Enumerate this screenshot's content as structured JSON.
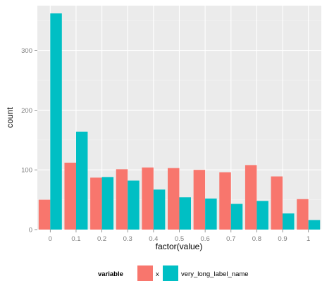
{
  "chart_data": {
    "type": "bar",
    "title": "",
    "xlabel": "factor(value)",
    "ylabel": "count",
    "ylim": [
      0,
      375
    ],
    "yticks": [
      0,
      100,
      200,
      300
    ],
    "categories": [
      "0",
      "0.1",
      "0.2",
      "0.3",
      "0.4",
      "0.5",
      "0.6",
      "0.7",
      "0.8",
      "0.9",
      "1"
    ],
    "series": [
      {
        "name": "x",
        "color": "#F8766D",
        "values": [
          50,
          112,
          87,
          101,
          104,
          103,
          100,
          96,
          108,
          89,
          51
        ]
      },
      {
        "name": "very_long_label_name",
        "color": "#00BFC4",
        "values": [
          362,
          164,
          88,
          82,
          67,
          54,
          52,
          43,
          48,
          27,
          16
        ]
      }
    ],
    "grid": true,
    "panel_background": "#EBEBEB",
    "legend": {
      "title": "variable",
      "position": "bottom"
    }
  }
}
